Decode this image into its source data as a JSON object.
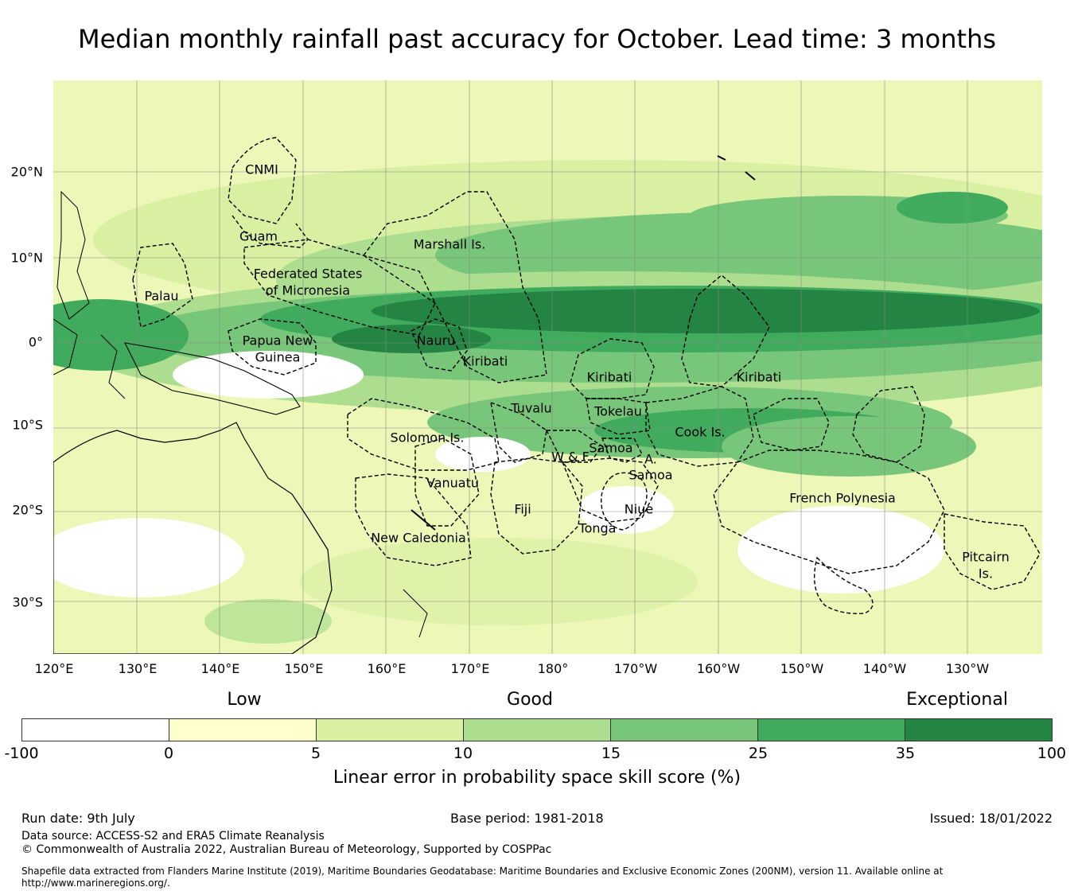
{
  "title": "Median monthly rainfall past accuracy for October. Lead time: 3 months",
  "map": {
    "lat_labels": [
      "20°N",
      "10°N",
      "0°",
      "10°S",
      "20°S",
      "30°S"
    ],
    "lon_labels": [
      "120°E",
      "130°E",
      "140°E",
      "150°E",
      "160°E",
      "170°E",
      "180°",
      "170°W",
      "160°W",
      "150°W",
      "140°W",
      "130°W"
    ],
    "regions": {
      "cnmi": "CNMI",
      "guam": "Guam",
      "marshall": "Marshall Is.",
      "fsm_1": "Federated States",
      "fsm_2": "of Micronesia",
      "palau": "Palau",
      "png_1": "Papua New",
      "png_2": "Guinea",
      "nauru": "Nauru",
      "kiribati_w": "Kiribati",
      "kiribati_c": "Kiribati",
      "kiribati_e": "Kiribati",
      "tuvalu": "Tuvalu",
      "tokelau": "Tokelau",
      "cook": "Cook Is.",
      "solomon": "Solomon Is.",
      "wf": "W & F",
      "samoa": "Samoa",
      "asamoa_1": "A.",
      "asamoa_2": "Samoa",
      "vanuatu": "Vanuatu",
      "fiji": "Fiji",
      "niue": "Niue",
      "tonga": "Tonga",
      "french_polynesia": "French Polynesia",
      "new_caledonia": "New Caledonia",
      "pitcairn_1": "Pitcairn",
      "pitcairn_2": "Is."
    }
  },
  "legend": {
    "categories": [
      "Low",
      "Good",
      "Exceptional"
    ],
    "ticks": [
      "-100",
      "0",
      "5",
      "10",
      "15",
      "25",
      "35",
      "100"
    ],
    "colors": [
      "#ffffff",
      "#ffffcc",
      "#d9f0a3",
      "#addd8e",
      "#78c679",
      "#41ab5d",
      "#238443"
    ],
    "title": "Linear error in probability space skill score (%)"
  },
  "footer": {
    "run_date": "Run date: 9th July",
    "base_period": "Base period: 1981-2018",
    "issued": "Issued: 18/01/2022",
    "data_source": "Data source: ACCESS-S2 and ERA5 Climate Reanalysis",
    "copyright": "© Commonwealth of Australia 2022, Australian Bureau of Meteorology, Supported by COSPPac",
    "shapefile": "Shapefile data extracted from Flanders Marine Institute (2019), Maritime Boundaries Geodatabase: Maritime Boundaries and Exclusive Economic Zones (200NM), version 11. Available online at",
    "url": "http://www.marineregions.org/."
  }
}
